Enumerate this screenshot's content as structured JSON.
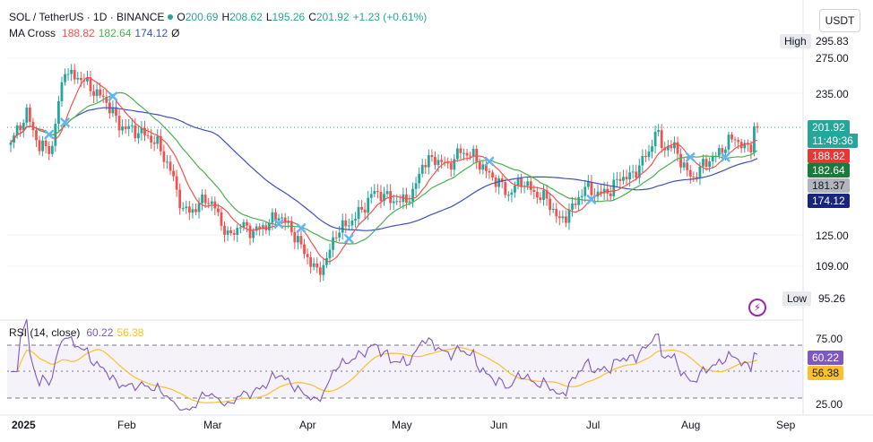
{
  "header": {
    "symbol": "SOL / TetherUS · 1D · BINANCE",
    "o_label": "O",
    "o_value": "200.69",
    "h_label": "H",
    "h_value": "208.62",
    "l_label": "L",
    "l_value": "195.26",
    "c_label": "C",
    "c_value": "201.92",
    "change": "+1.23 (+0.61%)",
    "currency_button": "USDT"
  },
  "ma_legend": {
    "name": "MA Cross",
    "v1": "188.82",
    "v2": "182.64",
    "v3": "174.12",
    "extra": "Ø"
  },
  "rsi_legend": {
    "name": "RSI (14, close)",
    "v1": "60.22",
    "v2": "56.38"
  },
  "markers": {
    "high_label": "High",
    "high_value": "295.83",
    "low_label": "Low",
    "low_value": "95.26"
  },
  "price_axis": {
    "ticks": [
      "275.00",
      "235.00",
      "125.00",
      "109.00"
    ]
  },
  "rsi_axis": {
    "ticks": [
      "75.00",
      "25.00"
    ]
  },
  "time_axis": {
    "labels": [
      "2025",
      "Feb",
      "Mar",
      "Apr",
      "May",
      "Jun",
      "Jul",
      "Aug",
      "Sep"
    ]
  },
  "price_tags": {
    "last": "201.92",
    "countdown": "11:49:36",
    "ma_fast": "188.82",
    "ma_mid": "182.64",
    "ma_grey": "181.37",
    "ma_slow": "174.12"
  },
  "rsi_tags": {
    "rsi": "60.22",
    "ma": "56.38"
  },
  "colors": {
    "up": "#26a69a",
    "down": "#ef5350",
    "ma_fast": "#ef5350",
    "ma_mid": "#4caf50",
    "ma_slow": "#3f51b5",
    "rsi": "#7e57c2",
    "rsi_ma": "#fbc02d",
    "last": "#26a69a"
  },
  "chart_data": {
    "type": "candlestick",
    "title": "SOL / TetherUS · 1D · BINANCE",
    "x_range": [
      "2025-01-01",
      "2025-08-23"
    ],
    "y_scale": "log",
    "ylim": [
      90,
      330
    ],
    "anchors_close": [
      [
        "2025-01-01",
        189
      ],
      [
        "2025-01-06",
        215
      ],
      [
        "2025-01-10",
        185
      ],
      [
        "2025-01-14",
        185
      ],
      [
        "2025-01-18",
        265
      ],
      [
        "2025-01-19",
        255
      ],
      [
        "2025-01-23",
        252
      ],
      [
        "2025-01-27",
        238
      ],
      [
        "2025-01-31",
        227
      ],
      [
        "2025-02-04",
        204
      ],
      [
        "2025-02-08",
        200
      ],
      [
        "2025-02-12",
        196
      ],
      [
        "2025-02-16",
        188
      ],
      [
        "2025-02-20",
        167
      ],
      [
        "2025-02-24",
        139
      ],
      [
        "2025-02-28",
        141
      ],
      [
        "2025-03-03",
        148
      ],
      [
        "2025-03-06",
        141
      ],
      [
        "2025-03-10",
        124
      ],
      [
        "2025-03-14",
        131
      ],
      [
        "2025-03-18",
        127
      ],
      [
        "2025-03-22",
        131
      ],
      [
        "2025-03-26",
        137
      ],
      [
        "2025-03-30",
        128
      ],
      [
        "2025-04-03",
        116
      ],
      [
        "2025-04-07",
        106
      ],
      [
        "2025-04-10",
        112
      ],
      [
        "2025-04-13",
        127
      ],
      [
        "2025-04-17",
        132
      ],
      [
        "2025-04-21",
        140
      ],
      [
        "2025-04-25",
        152
      ],
      [
        "2025-04-29",
        148
      ],
      [
        "2025-05-03",
        145
      ],
      [
        "2025-05-07",
        150
      ],
      [
        "2025-05-10",
        172
      ],
      [
        "2025-05-14",
        176
      ],
      [
        "2025-05-18",
        170
      ],
      [
        "2025-05-22",
        182
      ],
      [
        "2025-05-26",
        178
      ],
      [
        "2025-05-30",
        166
      ],
      [
        "2025-06-03",
        158
      ],
      [
        "2025-06-06",
        150
      ],
      [
        "2025-06-10",
        160
      ],
      [
        "2025-06-14",
        151
      ],
      [
        "2025-06-18",
        147
      ],
      [
        "2025-06-22",
        133
      ],
      [
        "2025-06-26",
        141
      ],
      [
        "2025-06-30",
        155
      ],
      [
        "2025-07-04",
        150
      ],
      [
        "2025-07-08",
        153
      ],
      [
        "2025-07-11",
        162
      ],
      [
        "2025-07-15",
        163
      ],
      [
        "2025-07-18",
        175
      ],
      [
        "2025-07-20",
        180
      ],
      [
        "2025-07-22",
        200
      ],
      [
        "2025-07-24",
        186
      ],
      [
        "2025-07-28",
        185
      ],
      [
        "2025-08-01",
        165
      ],
      [
        "2025-08-03",
        162
      ],
      [
        "2025-08-07",
        174
      ],
      [
        "2025-08-10",
        178
      ],
      [
        "2025-08-14",
        190
      ],
      [
        "2025-08-16",
        193
      ],
      [
        "2025-08-19",
        184
      ],
      [
        "2025-08-21",
        187
      ],
      [
        "2025-08-22",
        201.92
      ]
    ],
    "ma_last": {
      "fast": 188.82,
      "mid": 182.64,
      "slow": 174.12
    },
    "rsi_last": {
      "rsi": 60.22,
      "ma": 56.38
    },
    "rsi_bands": [
      30,
      50,
      70
    ]
  }
}
